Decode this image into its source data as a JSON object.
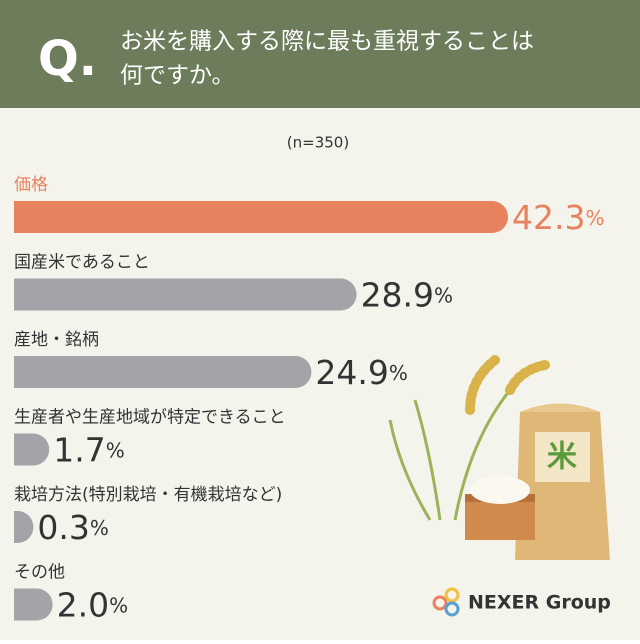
{
  "chart_data": {
    "type": "bar",
    "orientation": "horizontal",
    "question_mark": "Q.",
    "title": [
      "お米を購入する際に最も重視することは",
      "何ですか。"
    ],
    "subtitle": "(n=350)",
    "categories": [
      "価格",
      "国産米であること",
      "産地・銘柄",
      "生産者や生産地域が特定できること",
      "栽培方法(特別栽培・有機栽培など)",
      "その他"
    ],
    "values": [
      42.3,
      28.9,
      24.9,
      1.7,
      0.3,
      2.0
    ],
    "value_labels": [
      "42.3%",
      "28.9%",
      "24.9%",
      "1.7%",
      "0.3%",
      "2.0%"
    ],
    "colors": [
      "#e8825e",
      "#a3a3a8",
      "#a3a3a8",
      "#a3a3a8",
      "#a3a3a8",
      "#a3a3a8"
    ],
    "label_colors": [
      "#e8825e",
      "#333333",
      "#333333",
      "#333333",
      "#333333",
      "#333333"
    ],
    "logo": "NEXER Group"
  }
}
